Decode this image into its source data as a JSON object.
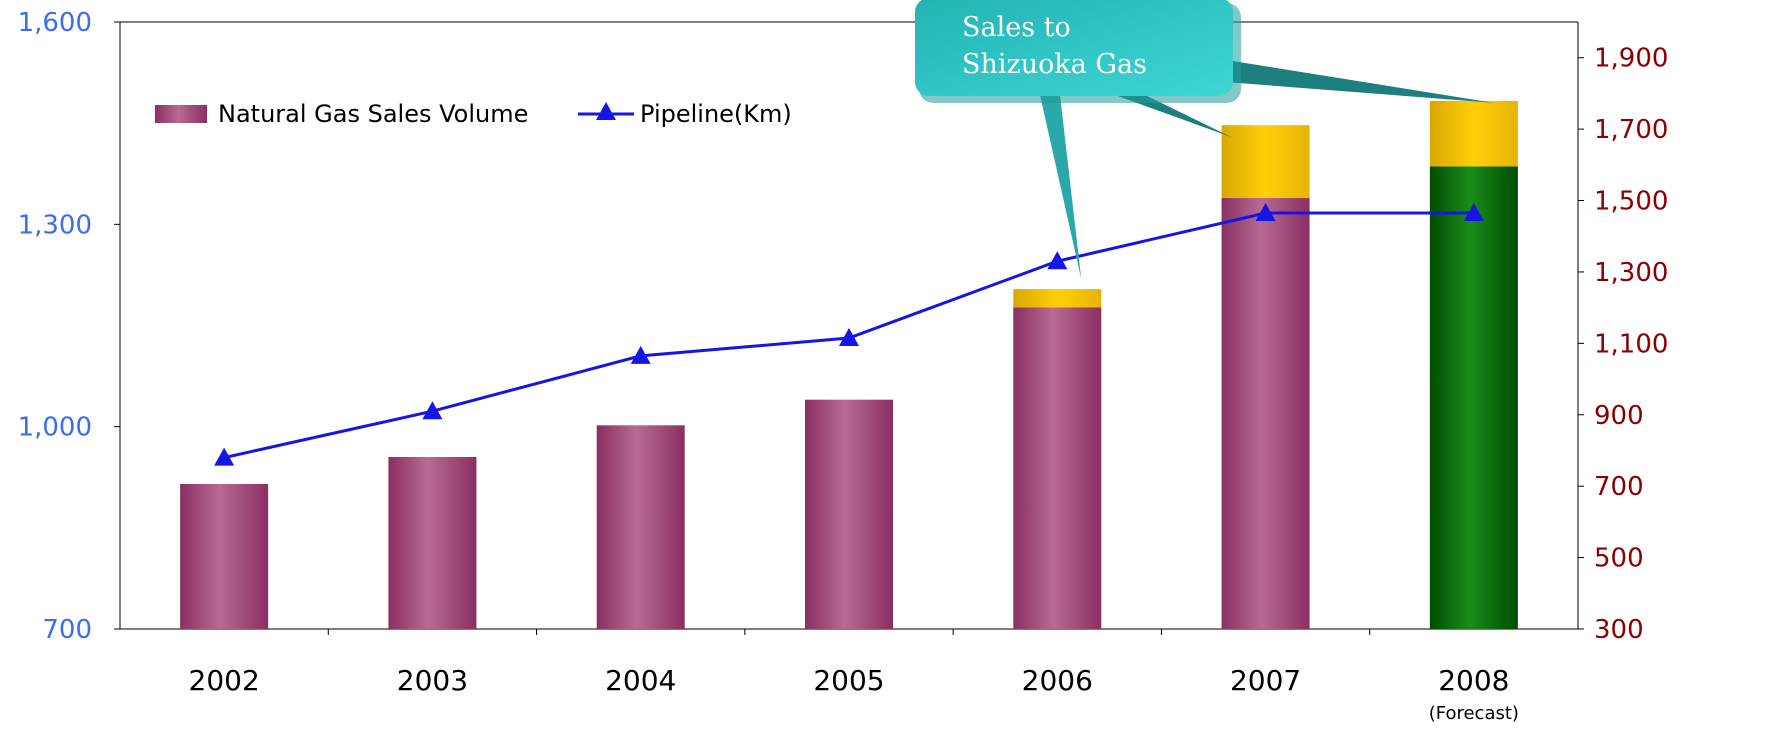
{
  "chart_data": {
    "type": "bar",
    "categories": [
      "2002",
      "2003",
      "2004",
      "2005",
      "2006",
      "2007",
      "2008"
    ],
    "category_sublabels": [
      "",
      "",
      "",
      "",
      "",
      "",
      "(Forecast)"
    ],
    "series": [
      {
        "name": "Natural Gas Sales Volume",
        "type": "bar",
        "axis": "left",
        "values": [
          915,
          955,
          1002,
          1040,
          1177,
          1339,
          1386
        ],
        "colors_by_point": [
          "#9b3d6f",
          "#9b3d6f",
          "#9b3d6f",
          "#9b3d6f",
          "#9b3d6f",
          "#9b3d6f",
          "#0f6d0f"
        ]
      },
      {
        "name": "Sales to Shizuoka Gas",
        "type": "bar-stack",
        "axis": "left",
        "values": [
          0,
          0,
          0,
          0,
          27,
          108,
          97
        ],
        "color": "#f0c000"
      },
      {
        "name": "Pipeline(Km)",
        "type": "line",
        "axis": "right",
        "values": [
          780,
          910,
          1065,
          1115,
          1330,
          1465,
          1465
        ],
        "color": "#1515e6",
        "marker": "triangle"
      }
    ],
    "left_axis": {
      "min": 700,
      "max": 1600,
      "ticks": [
        700,
        1000,
        1300,
        1600
      ],
      "tick_labels": [
        "700",
        "1,000",
        "1,300",
        "1,600"
      ],
      "color": "#3a6df0"
    },
    "right_axis": {
      "min": 300,
      "max": 2000,
      "ticks": [
        300,
        500,
        700,
        900,
        1100,
        1300,
        1500,
        1700,
        1900
      ],
      "tick_labels": [
        "300",
        "500",
        "700",
        "900",
        "1,100",
        "1,300",
        "1,500",
        "1,700",
        "1,900"
      ],
      "color": "#8b0000"
    },
    "legend": {
      "placement": "top-left",
      "entries": [
        {
          "label": "Natural Gas Sales Volume",
          "swatch": "bar",
          "color": "#9b3d6f"
        },
        {
          "label": "Pipeline(Km)",
          "swatch": "line-triangle",
          "color": "#1515e6"
        }
      ]
    },
    "callout": {
      "lines": [
        "Sales to",
        "Shizuoka Gas"
      ],
      "fill": "#33c9c9",
      "points_to": [
        "2006",
        "2007",
        "2008"
      ]
    },
    "grid": false
  }
}
